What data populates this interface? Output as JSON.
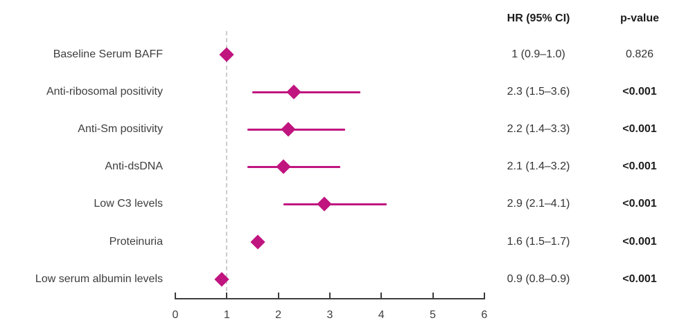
{
  "table": {
    "hr_header": "HR (95% CI)",
    "p_header": "p-value"
  },
  "chart_data": {
    "type": "forest",
    "title": "",
    "xlabel": "",
    "ylabel": "",
    "x_axis": {
      "min": 0,
      "max": 6,
      "ticks": [
        0,
        1,
        2,
        3,
        4,
        5,
        6
      ],
      "reference_line": 1
    },
    "grid": false,
    "legend": false,
    "rows": [
      {
        "label": "Baseline Serum BAFF",
        "hr": 1.0,
        "ci_low": 0.9,
        "ci_high": 1.0,
        "hr_ci_text": "1 (0.9–1.0)",
        "p_text": "0.826",
        "p_bold": false
      },
      {
        "label": "Anti-ribosomal positivity",
        "hr": 2.3,
        "ci_low": 1.5,
        "ci_high": 3.6,
        "hr_ci_text": "2.3 (1.5–3.6)",
        "p_text": "<0.001",
        "p_bold": true
      },
      {
        "label": "Anti-Sm positivity",
        "hr": 2.2,
        "ci_low": 1.4,
        "ci_high": 3.3,
        "hr_ci_text": "2.2 (1.4–3.3)",
        "p_text": "<0.001",
        "p_bold": true
      },
      {
        "label": "Anti-dsDNA",
        "hr": 2.1,
        "ci_low": 1.4,
        "ci_high": 3.2,
        "hr_ci_text": "2.1 (1.4–3.2)",
        "p_text": "<0.001",
        "p_bold": true
      },
      {
        "label": "Low C3 levels",
        "hr": 2.9,
        "ci_low": 2.1,
        "ci_high": 4.1,
        "hr_ci_text": "2.9 (2.1–4.1)",
        "p_text": "<0.001",
        "p_bold": true
      },
      {
        "label": "Proteinuria",
        "hr": 1.6,
        "ci_low": 1.5,
        "ci_high": 1.7,
        "hr_ci_text": "1.6 (1.5–1.7)",
        "p_text": "<0.001",
        "p_bold": true
      },
      {
        "label": "Low serum albumin levels",
        "hr": 0.9,
        "ci_low": 0.8,
        "ci_high": 0.9,
        "hr_ci_text": "0.9 (0.8–0.9)",
        "p_text": "<0.001",
        "p_bold": true
      }
    ],
    "colors": {
      "marker": "#c0147f",
      "reference_line": "#cccccc",
      "axis": "#3d3d3d",
      "text": "#3d3d3d",
      "header_text": "#1c1c1c"
    }
  }
}
